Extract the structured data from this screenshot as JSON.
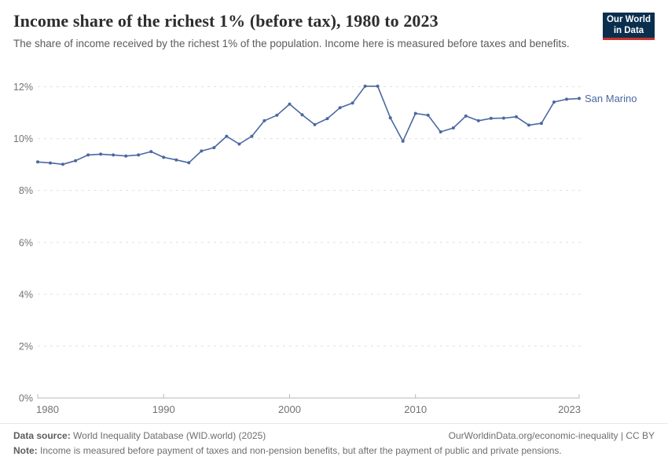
{
  "header": {
    "title": "Income share of the richest 1% (before tax), 1980 to 2023",
    "subtitle": "The share of income received by the richest 1% of the population. Income here is measured before taxes and benefits.",
    "logo": {
      "line1": "Our World",
      "line2": "in Data",
      "bg_color": "#0a2e4e",
      "bar_color": "#c5332b"
    }
  },
  "chart_data": {
    "type": "line",
    "title": "Income share of the richest 1% (before tax), 1980 to 2023",
    "xlabel": "",
    "ylabel": "",
    "xlim": [
      1980,
      2023
    ],
    "ylim": [
      0,
      12
    ],
    "grid": "horizontal-dashed",
    "legend_position": "end-of-line-label",
    "x": [
      1980,
      1981,
      1982,
      1983,
      1984,
      1985,
      1986,
      1987,
      1988,
      1989,
      1990,
      1991,
      1992,
      1993,
      1994,
      1995,
      1996,
      1997,
      1998,
      1999,
      2000,
      2001,
      2002,
      2003,
      2004,
      2005,
      2006,
      2007,
      2008,
      2009,
      2010,
      2011,
      2012,
      2013,
      2014,
      2015,
      2016,
      2017,
      2018,
      2019,
      2020,
      2021,
      2022,
      2023
    ],
    "series": [
      {
        "name": "San Marino",
        "color": "#4a68a1",
        "values": [
          9.1,
          9.06,
          9.01,
          9.15,
          9.37,
          9.4,
          9.37,
          9.33,
          9.37,
          9.5,
          9.28,
          9.18,
          9.07,
          9.52,
          9.65,
          10.09,
          9.79,
          10.09,
          10.69,
          10.9,
          11.33,
          10.92,
          10.54,
          10.77,
          11.19,
          11.37,
          12.02,
          12.02,
          10.8,
          9.9,
          10.97,
          10.9,
          10.26,
          10.41,
          10.87,
          10.69,
          10.78,
          10.79,
          10.84,
          10.52,
          10.59,
          11.41,
          11.52,
          11.55
        ]
      }
    ],
    "y_ticks": [
      {
        "v": 0,
        "label": "0%"
      },
      {
        "v": 2,
        "label": "2%"
      },
      {
        "v": 4,
        "label": "4%"
      },
      {
        "v": 6,
        "label": "6%"
      },
      {
        "v": 8,
        "label": "8%"
      },
      {
        "v": 10,
        "label": "10%"
      },
      {
        "v": 12,
        "label": "12%"
      }
    ],
    "x_ticks": [
      {
        "v": 1980,
        "label": "1980",
        "anchor": "start"
      },
      {
        "v": 1990,
        "label": "1990",
        "anchor": "middle"
      },
      {
        "v": 2000,
        "label": "2000",
        "anchor": "middle"
      },
      {
        "v": 2010,
        "label": "2010",
        "anchor": "middle"
      },
      {
        "v": 2023,
        "label": "2023",
        "anchor": "end"
      }
    ],
    "colors": {
      "gridline": "#e0e0e0",
      "axis": "#b8b8b8",
      "tick_label": "#737373"
    }
  },
  "footer": {
    "source_label": "Data source:",
    "source_text": " World Inequality Database (WID.world) (2025)",
    "link_text": "OurWorldinData.org/economic-inequality | CC BY",
    "note_label": "Note:",
    "note_text": " Income is measured before payment of taxes and non-pension benefits, but after the payment of public and private pensions."
  }
}
